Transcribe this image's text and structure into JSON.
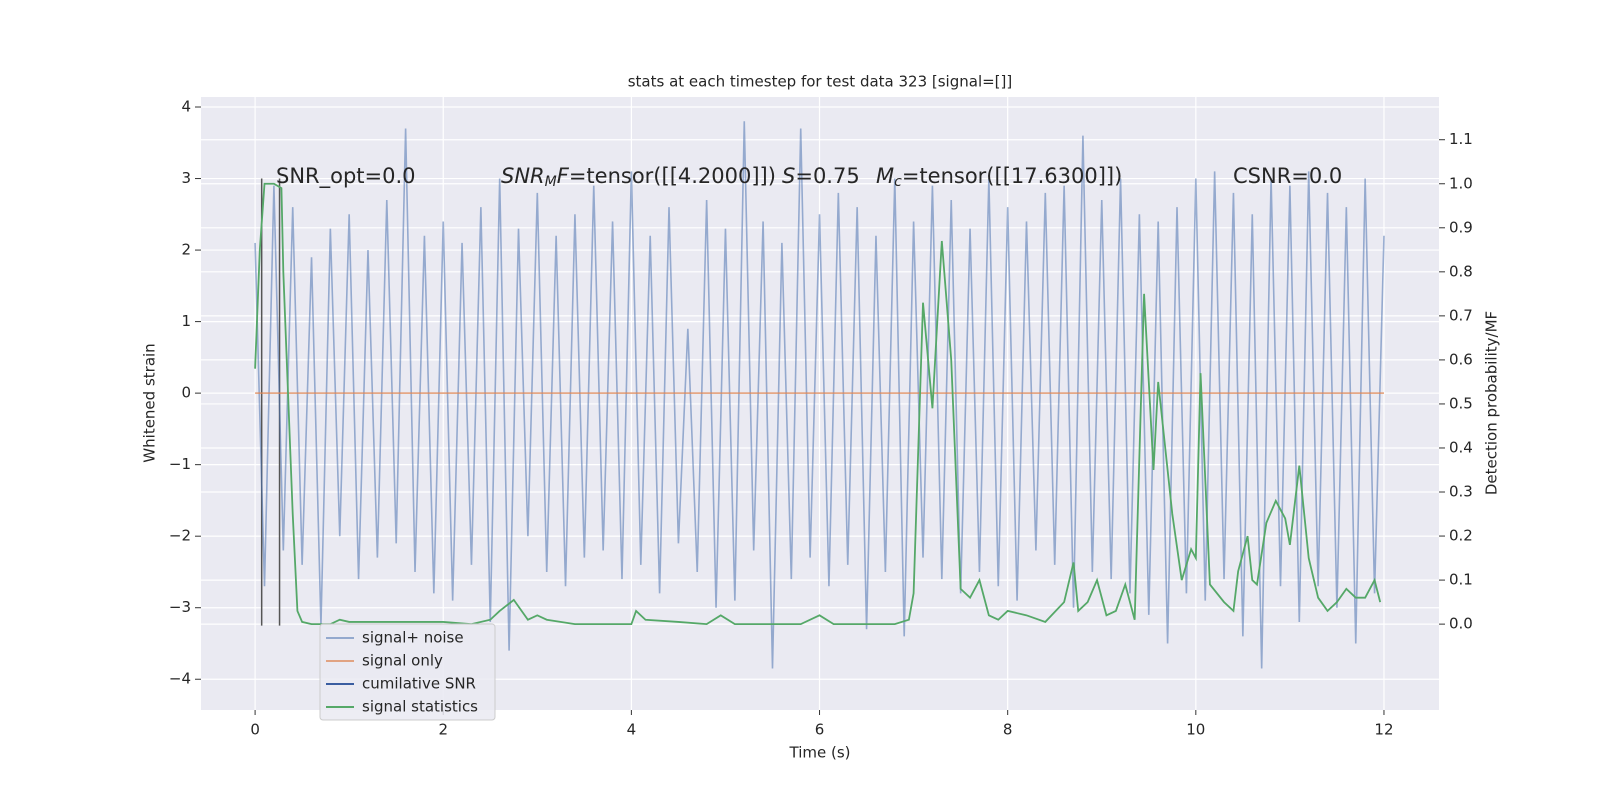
{
  "chart_data": {
    "type": "line",
    "title": "stats at each timestep for test data 323 [signal=[]]",
    "xlabel": "Time (s)",
    "ylabel": "Whitened strain",
    "y2label": "Detection probability/MF",
    "xlim": [
      -0.575,
      12.585
    ],
    "xticks": [
      0,
      2,
      4,
      6,
      8,
      10,
      12
    ],
    "ylim": [
      -4.43,
      4.14
    ],
    "yticks": [
      -4,
      -3,
      -2,
      -1,
      0,
      1,
      2,
      3,
      4
    ],
    "y2lim": [
      -0.195,
      1.197
    ],
    "y2ticks": [
      {
        "value": 0.0,
        "label": "0.0"
      },
      {
        "value": 0.1,
        "label": "0.1"
      },
      {
        "value": 0.2,
        "label": "0.2"
      },
      {
        "value": 0.3,
        "label": "0.3"
      },
      {
        "value": 0.4,
        "label": "0.4"
      },
      {
        "value": 0.5,
        "label": "0.5"
      },
      {
        "value": 0.6,
        "label": "0.6"
      },
      {
        "value": 0.7,
        "label": "0.7"
      },
      {
        "value": 0.8,
        "label": "0.8"
      },
      {
        "value": 0.9,
        "label": "0.9"
      },
      {
        "value": 1.0,
        "label": "1.0"
      },
      {
        "value": 1.1,
        "label": "1.1"
      }
    ],
    "grid": true,
    "legend": "lower left",
    "annotations": [
      {
        "text": "SNR_opt=0.0"
      },
      {
        "italic": "SNR",
        "sub": "M",
        "italic2": "F",
        "text": "=tensor([[4.2000]])"
      },
      {
        "italic": "S",
        "text": "=0.75"
      },
      {
        "italic": "M",
        "sub": "c",
        "text": "=tensor([[17.6300]])"
      },
      {
        "text": "CSNR=0.0"
      }
    ],
    "vertical_lines": {
      "x": [
        0.07,
        0.26
      ],
      "y_range": [
        -3.25,
        3.0
      ],
      "color": "#555555"
    },
    "series": [
      {
        "name": "signal+ noise",
        "color": "#4c72b0",
        "opacity": 0.55,
        "x": [
          0,
          0.1,
          0.2,
          0.3,
          0.4,
          0.5,
          0.6,
          0.7,
          0.8,
          0.9,
          1.0,
          1.1,
          1.2,
          1.3,
          1.4,
          1.5,
          1.6,
          1.7,
          1.8,
          1.9,
          2.0,
          2.1,
          2.2,
          2.3,
          2.4,
          2.5,
          2.6,
          2.7,
          2.8,
          2.9,
          3.0,
          3.1,
          3.2,
          3.3,
          3.4,
          3.5,
          3.6,
          3.7,
          3.8,
          3.9,
          4.0,
          4.1,
          4.2,
          4.3,
          4.4,
          4.5,
          4.6,
          4.7,
          4.8,
          4.9,
          5.0,
          5.1,
          5.2,
          5.3,
          5.4,
          5.5,
          5.6,
          5.7,
          5.8,
          5.9,
          6.0,
          6.1,
          6.2,
          6.3,
          6.4,
          6.5,
          6.6,
          6.7,
          6.8,
          6.9,
          7.0,
          7.1,
          7.2,
          7.3,
          7.4,
          7.5,
          7.6,
          7.7,
          7.8,
          7.9,
          8.0,
          8.1,
          8.2,
          8.3,
          8.4,
          8.5,
          8.6,
          8.7,
          8.8,
          8.9,
          9.0,
          9.1,
          9.2,
          9.3,
          9.4,
          9.5,
          9.6,
          9.7,
          9.8,
          9.9,
          10.0,
          10.1,
          10.2,
          10.3,
          10.4,
          10.5,
          10.6,
          10.7,
          10.8,
          10.9,
          11.0,
          11.1,
          11.2,
          11.3,
          11.4,
          11.5,
          11.6,
          11.7,
          11.8,
          11.9,
          12.0
        ],
        "values": [
          2.1,
          -2.7,
          2.9,
          -2.2,
          2.6,
          -2.4,
          1.9,
          -3.25,
          2.3,
          -2.0,
          2.5,
          -2.6,
          2.0,
          -2.3,
          2.7,
          -2.1,
          3.7,
          -2.5,
          2.2,
          -2.8,
          2.4,
          -2.9,
          2.1,
          -2.4,
          2.6,
          -3.2,
          3.0,
          -3.6,
          2.3,
          -2.0,
          2.8,
          -2.5,
          2.2,
          -2.7,
          2.5,
          -2.3,
          2.9,
          -2.2,
          2.4,
          -2.6,
          3.1,
          -2.4,
          2.2,
          -2.8,
          2.6,
          -2.1,
          0.9,
          -2.5,
          2.7,
          -3.0,
          2.3,
          -2.9,
          3.8,
          -2.2,
          2.4,
          -3.85,
          2.1,
          -2.6,
          3.7,
          -2.3,
          2.5,
          -2.7,
          2.8,
          -2.4,
          2.6,
          -3.3,
          2.2,
          -2.5,
          3.0,
          -3.4,
          2.4,
          -2.3,
          2.9,
          -2.6,
          2.7,
          -2.8,
          2.3,
          -2.5,
          3.0,
          -2.7,
          2.6,
          -2.9,
          2.4,
          -2.2,
          2.8,
          -2.4,
          2.9,
          -3.0,
          3.6,
          -2.5,
          2.7,
          -2.6,
          3.0,
          -2.8,
          2.5,
          -3.1,
          2.4,
          -3.5,
          2.6,
          -2.8,
          3.0,
          -2.9,
          3.1,
          -2.6,
          2.8,
          -3.4,
          2.5,
          -3.85,
          3.0,
          -2.7,
          2.9,
          -3.2,
          3.1,
          -2.7,
          2.8,
          -3.0,
          2.6,
          -3.5,
          3.0,
          -2.8,
          2.2
        ]
      },
      {
        "name": "signal only",
        "color": "#dd8452",
        "opacity": 0.7,
        "x": [
          0,
          12
        ],
        "values": [
          0,
          0
        ]
      },
      {
        "name": "cumilative SNR",
        "color": "#3a5da0",
        "opacity": 1,
        "x": [],
        "values": []
      },
      {
        "name": "signal statistics",
        "color": "#55a868",
        "opacity": 1,
        "axis": "y2",
        "x": [
          0,
          0.05,
          0.1,
          0.15,
          0.2,
          0.28,
          0.3,
          0.4,
          0.45,
          0.5,
          0.6,
          0.8,
          0.9,
          1.0,
          1.5,
          2.0,
          2.3,
          2.5,
          2.6,
          2.75,
          2.9,
          3.0,
          3.1,
          3.4,
          4.0,
          4.05,
          4.15,
          4.5,
          4.8,
          4.95,
          5.1,
          5.5,
          5.8,
          6.0,
          6.15,
          6.5,
          6.8,
          6.95,
          7.0,
          7.1,
          7.2,
          7.3,
          7.4,
          7.5,
          7.6,
          7.7,
          7.8,
          7.9,
          8.0,
          8.2,
          8.4,
          8.6,
          8.7,
          8.75,
          8.85,
          8.95,
          9.05,
          9.15,
          9.25,
          9.35,
          9.45,
          9.55,
          9.6,
          9.75,
          9.85,
          9.95,
          10.0,
          10.05,
          10.15,
          10.3,
          10.4,
          10.45,
          10.55,
          10.6,
          10.65,
          10.75,
          10.85,
          10.95,
          11.0,
          11.1,
          11.2,
          11.3,
          11.4,
          11.5,
          11.6,
          11.7,
          11.8,
          11.9,
          11.96
        ],
        "values": [
          0.58,
          0.85,
          1.0,
          1.0,
          1.0,
          0.99,
          0.8,
          0.25,
          0.03,
          0.005,
          0.0,
          0.0,
          0.01,
          0.005,
          0.005,
          0.005,
          0.0,
          0.01,
          0.03,
          0.055,
          0.01,
          0.02,
          0.01,
          0.0,
          0.0,
          0.03,
          0.01,
          0.005,
          0.0,
          0.02,
          0.0,
          0.0,
          0.0,
          0.02,
          0.0,
          0.0,
          0.0,
          0.01,
          0.07,
          0.73,
          0.49,
          0.87,
          0.6,
          0.08,
          0.06,
          0.1,
          0.02,
          0.01,
          0.03,
          0.02,
          0.005,
          0.05,
          0.14,
          0.03,
          0.05,
          0.1,
          0.02,
          0.03,
          0.09,
          0.01,
          0.75,
          0.35,
          0.55,
          0.25,
          0.1,
          0.17,
          0.15,
          0.57,
          0.09,
          0.05,
          0.03,
          0.12,
          0.2,
          0.1,
          0.09,
          0.23,
          0.28,
          0.24,
          0.18,
          0.36,
          0.15,
          0.06,
          0.03,
          0.05,
          0.08,
          0.06,
          0.06,
          0.1,
          0.05
        ]
      }
    ]
  }
}
